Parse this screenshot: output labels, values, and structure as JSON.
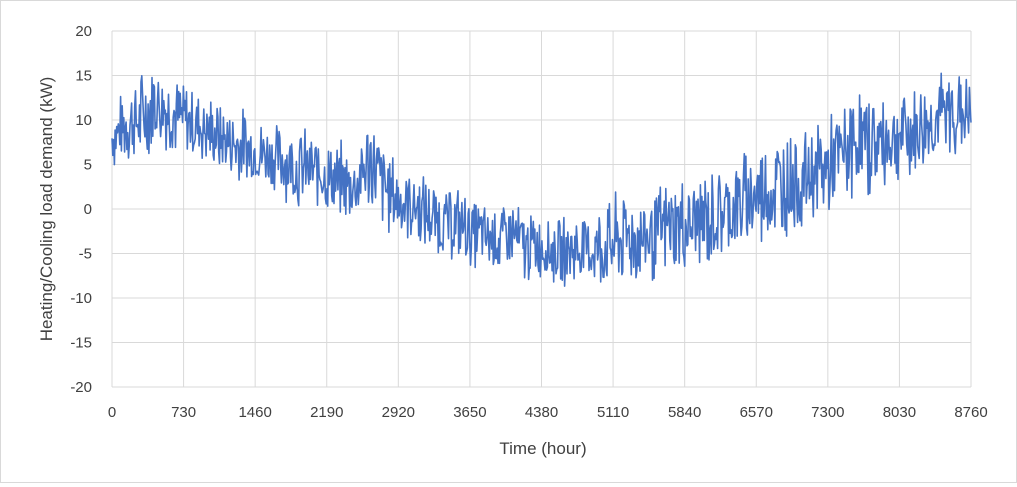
{
  "chart_data": {
    "type": "line",
    "title": "",
    "xlabel": "Time (hour)",
    "ylabel": "Heating/Cooling load demand (kW)",
    "xlim": [
      0,
      8760
    ],
    "ylim": [
      -20,
      20
    ],
    "x_ticks": [
      0,
      730,
      1460,
      2190,
      2920,
      3650,
      4380,
      5110,
      5840,
      6570,
      7300,
      8030,
      8760
    ],
    "y_ticks": [
      -20,
      -15,
      -10,
      -5,
      0,
      5,
      10,
      15,
      20
    ],
    "grid": true,
    "legend": "none",
    "series": [
      {
        "color": "#4472C4",
        "x": [
          0,
          146,
          292,
          438,
          584,
          730,
          876,
          1022,
          1168,
          1314,
          1460,
          1606,
          1752,
          1898,
          2044,
          2190,
          2336,
          2482,
          2628,
          2774,
          2920,
          3066,
          3212,
          3358,
          3504,
          3650,
          3796,
          3942,
          4088,
          4234,
          4380,
          4526,
          4672,
          4818,
          4964,
          5110,
          5256,
          5402,
          5548,
          5694,
          5840,
          5986,
          6132,
          6278,
          6424,
          6570,
          6716,
          6862,
          7008,
          7154,
          7300,
          7446,
          7592,
          7738,
          7884,
          8030,
          8176,
          8322,
          8468,
          8614,
          8760
        ],
        "y_min": [
          4,
          5,
          4,
          6,
          6,
          5,
          5,
          4,
          3,
          2,
          2,
          2,
          1,
          -1,
          0,
          -1,
          -2,
          -2,
          -1,
          -3,
          -4,
          -4,
          -5,
          -6,
          -6,
          -7,
          -7,
          -8,
          -8,
          -9,
          -8,
          -9,
          -9,
          -9,
          -10,
          -10,
          -9,
          -9,
          -9,
          -8,
          -8,
          -8,
          -7,
          -6,
          -6,
          -5,
          -5,
          -4,
          -3,
          -2,
          -2,
          0,
          1,
          1,
          2,
          3,
          3,
          4,
          5,
          5,
          6
        ],
        "y_max": [
          12,
          14,
          16,
          18,
          16,
          15,
          14,
          13,
          12,
          12,
          11,
          10,
          10,
          10,
          9,
          8,
          8,
          7,
          12,
          8,
          6,
          5,
          4,
          3,
          3,
          2,
          1,
          1,
          2,
          0,
          0,
          -1,
          0,
          0,
          1,
          2,
          3,
          2,
          3,
          4,
          4,
          5,
          5,
          6,
          7,
          8,
          9,
          10,
          9,
          10,
          11,
          12,
          14,
          14,
          13,
          14,
          14,
          15,
          16,
          17,
          15
        ]
      }
    ]
  }
}
